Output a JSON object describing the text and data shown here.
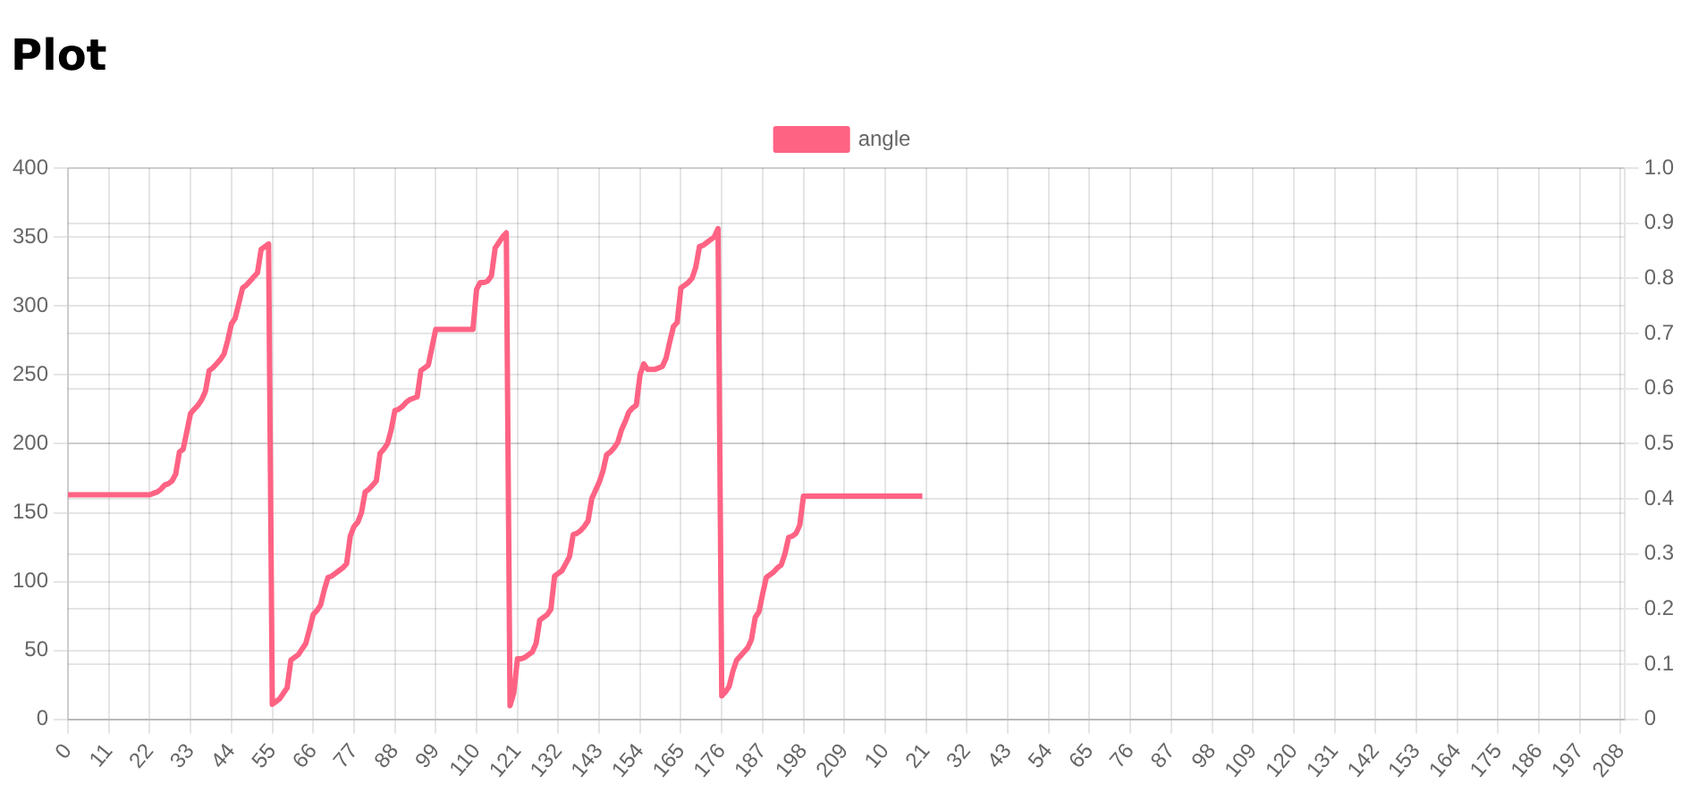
{
  "chart_data": {
    "type": "line",
    "title": "Plot",
    "legend": "top",
    "grid": true,
    "categories": [
      "0",
      null,
      null,
      null,
      null,
      null,
      null,
      null,
      null,
      null,
      null,
      "11",
      null,
      null,
      null,
      null,
      null,
      null,
      null,
      null,
      null,
      null,
      "22",
      null,
      null,
      null,
      null,
      null,
      null,
      null,
      null,
      null,
      null,
      "33",
      null,
      null,
      null,
      null,
      null,
      null,
      null,
      null,
      null,
      null,
      "44",
      null,
      null,
      null,
      null,
      null,
      null,
      null,
      null,
      null,
      null,
      "55",
      null,
      null,
      null,
      null,
      null,
      null,
      null,
      null,
      null,
      null,
      "66",
      null,
      null,
      null,
      null,
      null,
      null,
      null,
      null,
      null,
      null,
      "77",
      null,
      null,
      null,
      null,
      null,
      null,
      null,
      null,
      null,
      null,
      "88",
      null,
      null,
      null,
      null,
      null,
      null,
      null,
      null,
      null,
      null,
      "99",
      null,
      null,
      null,
      null,
      null,
      null,
      null,
      null,
      null,
      null,
      "110",
      null,
      null,
      null,
      null,
      null,
      null,
      null,
      null,
      null,
      null,
      "121",
      null,
      null,
      null,
      null,
      null,
      null,
      null,
      null,
      null,
      null,
      "132",
      null,
      null,
      null,
      null,
      null,
      null,
      null,
      null,
      null,
      null,
      "143",
      null,
      null,
      null,
      null,
      null,
      null,
      null,
      null,
      null,
      null,
      "154",
      null,
      null,
      null,
      null,
      null,
      null,
      null,
      null,
      null,
      null,
      "165",
      null,
      null,
      null,
      null,
      null,
      null,
      null,
      null,
      null,
      null,
      "176",
      null,
      null,
      null,
      null,
      null,
      null,
      null,
      null,
      null,
      null,
      "187",
      null,
      null,
      null,
      null,
      null,
      null,
      null,
      null,
      null,
      null,
      "198",
      null,
      null,
      null,
      null,
      null,
      null,
      null,
      null,
      null,
      null,
      "209",
      null,
      null,
      null,
      null,
      null,
      null,
      null,
      null,
      null,
      null,
      "10",
      null,
      null,
      null,
      null,
      null,
      null,
      null,
      null,
      null,
      null,
      "21",
      null,
      null,
      null,
      null,
      null,
      null,
      null,
      null,
      null,
      null,
      "32",
      null,
      null,
      null,
      null,
      null,
      null,
      null,
      null,
      null,
      null,
      "43",
      null,
      null,
      null,
      null,
      null,
      null,
      null,
      null,
      null,
      null,
      "54",
      null,
      null,
      null,
      null,
      null,
      null,
      null,
      null,
      null,
      null,
      "65",
      null,
      null,
      null,
      null,
      null,
      null,
      null,
      null,
      null,
      null,
      "76",
      null,
      null,
      null,
      null,
      null,
      null,
      null,
      null,
      null,
      null,
      "87",
      null,
      null,
      null,
      null,
      null,
      null,
      null,
      null,
      null,
      null,
      "98",
      null,
      null,
      null,
      null,
      null,
      null,
      null,
      null,
      null,
      null,
      "109",
      null,
      null,
      null,
      null,
      null,
      null,
      null,
      null,
      null,
      null,
      "120",
      null,
      null,
      null,
      null,
      null,
      null,
      null,
      null,
      null,
      null,
      "131",
      null,
      null,
      null,
      null,
      null,
      null,
      null,
      null,
      null,
      null,
      "142",
      null,
      null,
      null,
      null,
      null,
      null,
      null,
      null,
      null,
      null,
      "153",
      null,
      null,
      null,
      null,
      null,
      null,
      null,
      null,
      null,
      null,
      "164",
      null,
      null,
      null,
      null,
      null,
      null,
      null,
      null,
      null,
      null,
      "175",
      null,
      null,
      null,
      null,
      null,
      null,
      null,
      null,
      null,
      null,
      "186",
      null,
      null,
      null,
      null,
      null,
      null,
      null,
      null,
      null,
      null,
      "197",
      null,
      null,
      null,
      null,
      null,
      null,
      null,
      null,
      null,
      null,
      "208",
      null
    ],
    "series": [
      {
        "name": "angle",
        "color": "#ff6384",
        "values": [
          163,
          163,
          163,
          163,
          163,
          163,
          163,
          163,
          163,
          163,
          163,
          163,
          163,
          163,
          163,
          163,
          163,
          163,
          163,
          163,
          163,
          163,
          163,
          164,
          165,
          167,
          170,
          171,
          173,
          178,
          194,
          196,
          209,
          222,
          225,
          228,
          232,
          238,
          253,
          255,
          258,
          261,
          265,
          275,
          287,
          291,
          302,
          313,
          315,
          318,
          321,
          324,
          341,
          343,
          345,
          11,
          13,
          15,
          19,
          23,
          43,
          45,
          47,
          51,
          55,
          65,
          76,
          79,
          83,
          94,
          103,
          104,
          106,
          108,
          110,
          113,
          133,
          140,
          143,
          150,
          165,
          167,
          170,
          173,
          193,
          196,
          200,
          210,
          224,
          225,
          227,
          230,
          232,
          233,
          234,
          253,
          255,
          257,
          270,
          283,
          283,
          283,
          283,
          283,
          283,
          283,
          283,
          283,
          283,
          283,
          312,
          317,
          317,
          318,
          322,
          342,
          346,
          350,
          353,
          10,
          19,
          44,
          44,
          45,
          47,
          49,
          55,
          72,
          74,
          76,
          80,
          104,
          106,
          108,
          113,
          118,
          134,
          135,
          137,
          140,
          144,
          160,
          166,
          172,
          180,
          192,
          194,
          197,
          201,
          210,
          216,
          223,
          226,
          228,
          250,
          258,
          254,
          254,
          254,
          255,
          256,
          262,
          274,
          285,
          288,
          313,
          315,
          317,
          320,
          328,
          343,
          344,
          346,
          348,
          350,
          356,
          17,
          20,
          24,
          35,
          43,
          46,
          49,
          52,
          58,
          74,
          78,
          91,
          103,
          105,
          107,
          110,
          112,
          120,
          132,
          133,
          135,
          141,
          162,
          162,
          162,
          162,
          162,
          162,
          162,
          162,
          162,
          162,
          162,
          162,
          162,
          162,
          162,
          162,
          162,
          162,
          162,
          162,
          162,
          162,
          162,
          162,
          162,
          162,
          162,
          162,
          162,
          162,
          162,
          162,
          162,
          null,
          null,
          null,
          null,
          null,
          null,
          null,
          null,
          null,
          null,
          null,
          null,
          null,
          null,
          null,
          null,
          null,
          null,
          null,
          null,
          null,
          null,
          null,
          null,
          null,
          null,
          null,
          null,
          null,
          null,
          null,
          null,
          null,
          null,
          null,
          null,
          null,
          null,
          null,
          null,
          null,
          null,
          null,
          null,
          null,
          null,
          null,
          null,
          null,
          null,
          null,
          null,
          null,
          null,
          null,
          null,
          null,
          null,
          null,
          null,
          null,
          null,
          null,
          null,
          null,
          null,
          null,
          null,
          null,
          null,
          null,
          null,
          null,
          null,
          null,
          null,
          null,
          null,
          null,
          null,
          null,
          null,
          null,
          null,
          null,
          null,
          null,
          null,
          null,
          null,
          null,
          null,
          null,
          null,
          null,
          null,
          null,
          null,
          null,
          null,
          null,
          null,
          null,
          null,
          null,
          null,
          null,
          null,
          null,
          null,
          null,
          null,
          null,
          null,
          null,
          null,
          null,
          null,
          null,
          null,
          null,
          null,
          null,
          null,
          null,
          null,
          null,
          null,
          null,
          null,
          null,
          null,
          null,
          null,
          null,
          null,
          null,
          null,
          null,
          null,
          null,
          null,
          null,
          null,
          null,
          null,
          null,
          null,
          null,
          null,
          null,
          null,
          null,
          null,
          null,
          null,
          null,
          null,
          null,
          null,
          null,
          null,
          null,
          null,
          null,
          null,
          null,
          null,
          null,
          null,
          null,
          null,
          null,
          null,
          null,
          null,
          null,
          null,
          null,
          null,
          null,
          null,
          null,
          null,
          null,
          null,
          null,
          null,
          null
        ]
      }
    ],
    "ylim": [
      0,
      400
    ],
    "yticks": [
      0,
      50,
      100,
      150,
      200,
      250,
      300,
      350,
      400
    ],
    "y2lim": [
      0,
      1
    ],
    "y2ticks": [
      0,
      0.1,
      0.2,
      0.3,
      0.4,
      0.5,
      0.6,
      0.7,
      0.8,
      0.9,
      {
        "value": 1,
        "label": "1.0"
      }
    ]
  }
}
